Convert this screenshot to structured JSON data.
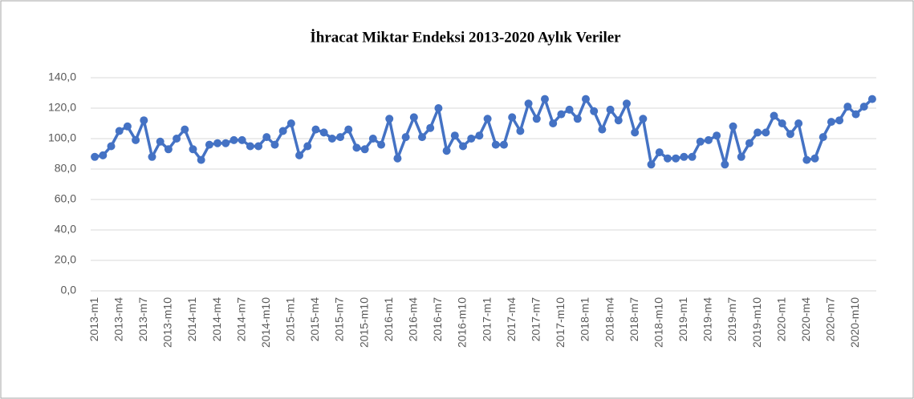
{
  "chart_data": {
    "type": "line",
    "title": "İhracat Miktar Endeksi 2013-2020 Aylık Veriler",
    "categories": [
      "2013-m1",
      null,
      null,
      "2013-m4",
      null,
      null,
      "2013-m7",
      null,
      null,
      "2013-m10",
      null,
      null,
      "2014-m1",
      null,
      null,
      "2014-m4",
      null,
      null,
      "2014-m7",
      null,
      null,
      "2014-m10",
      null,
      null,
      "2015-m1",
      null,
      null,
      "2015-m4",
      null,
      null,
      "2015-m7",
      null,
      null,
      "2015-m10",
      null,
      null,
      "2016-m1",
      null,
      null,
      "2016-m4",
      null,
      null,
      "2016-m7",
      null,
      null,
      "2016-m10",
      null,
      null,
      "2017-m1",
      null,
      null,
      "2017-m4",
      null,
      null,
      "2017-m7",
      null,
      null,
      "2017-m10",
      null,
      null,
      "2018-m1",
      null,
      null,
      "2018-m4",
      null,
      null,
      "2018-m7",
      null,
      null,
      "2018-m10",
      null,
      null,
      "2019-m1",
      null,
      null,
      "2019-m4",
      null,
      null,
      "2019-m7",
      null,
      null,
      "2019-m10",
      null,
      null,
      "2020-m1",
      null,
      null,
      "2020-m4",
      null,
      null,
      "2020-m7",
      null,
      null,
      "2020-m10",
      null,
      null
    ],
    "values": [
      88,
      89,
      95,
      105,
      108,
      99,
      112,
      88,
      98,
      93,
      100,
      106,
      93,
      86,
      96,
      97,
      97,
      99,
      99,
      95,
      95,
      101,
      96,
      105,
      110,
      89,
      95,
      106,
      104,
      100,
      101,
      106,
      94,
      93,
      100,
      96,
      113,
      87,
      101,
      114,
      101,
      107,
      120,
      92,
      102,
      95,
      100,
      102,
      113,
      96,
      96,
      114,
      105,
      123,
      113,
      126,
      110,
      116,
      119,
      113,
      126,
      118,
      106,
      119,
      112,
      123,
      104,
      113,
      83,
      91,
      87,
      87,
      88,
      88,
      98,
      99,
      102,
      83,
      108,
      88,
      97,
      104,
      104,
      115,
      110,
      103,
      110,
      86,
      87,
      101,
      111,
      112,
      121,
      116,
      121,
      126
    ],
    "color": "#4472c4",
    "ylim": [
      0,
      140
    ],
    "yticks": [
      {
        "value": 0,
        "label": "0,0"
      },
      {
        "value": 20,
        "label": "20,0"
      },
      {
        "value": 40,
        "label": "40,0"
      },
      {
        "value": 60,
        "label": "60,0"
      },
      {
        "value": 80,
        "label": "80,0"
      },
      {
        "value": 100,
        "label": "100,0"
      },
      {
        "value": 120,
        "label": "120,0"
      },
      {
        "value": 140,
        "label": "140,0"
      }
    ],
    "grid": true
  }
}
